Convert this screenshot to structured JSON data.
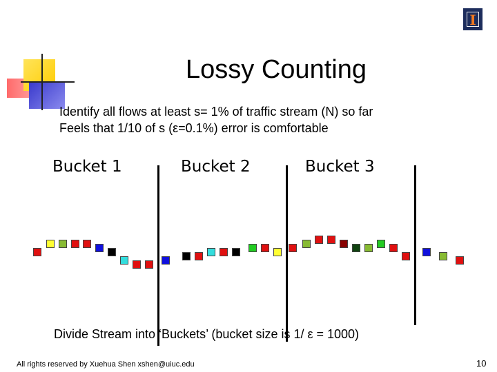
{
  "slide": {
    "title": "Lossy Counting",
    "line1": "Identify all flows at least s= 1% of traffic stream (N) so far",
    "line2": "Feels that 1/10 of s (ε=0.1%) error is comfortable",
    "buckets": [
      "Bucket 1",
      "Bucket 2",
      "Bucket 3"
    ],
    "caption": "Divide Stream into ‘Buckets’ (bucket size is 1/ ε = 1000)",
    "footer": "All rights reserved by Xuehua Shen xshen@uiuc.edu",
    "page_number": "10",
    "logo_letter": "I"
  },
  "stream": {
    "colors": {
      "red": "#e01010",
      "yellow": "#ffff33",
      "green": "#88bb33",
      "brightgreen": "#22cc22",
      "blue": "#1010dd",
      "black": "#000000",
      "cyan": "#33dddd",
      "darkred": "#880000",
      "darkgreen": "#114411"
    },
    "items": [
      "red",
      "yellow",
      "green",
      "red",
      "red",
      "blue",
      "black",
      "cyan",
      "red",
      "red",
      "blue",
      "black",
      "red",
      "cyan",
      "red",
      "black",
      "brightgreen",
      "red",
      "yellow",
      "red",
      "green",
      "red",
      "red",
      "darkred",
      "darkgreen",
      "green",
      "brightgreen",
      "red",
      "red",
      "blue",
      "green",
      "red"
    ]
  }
}
